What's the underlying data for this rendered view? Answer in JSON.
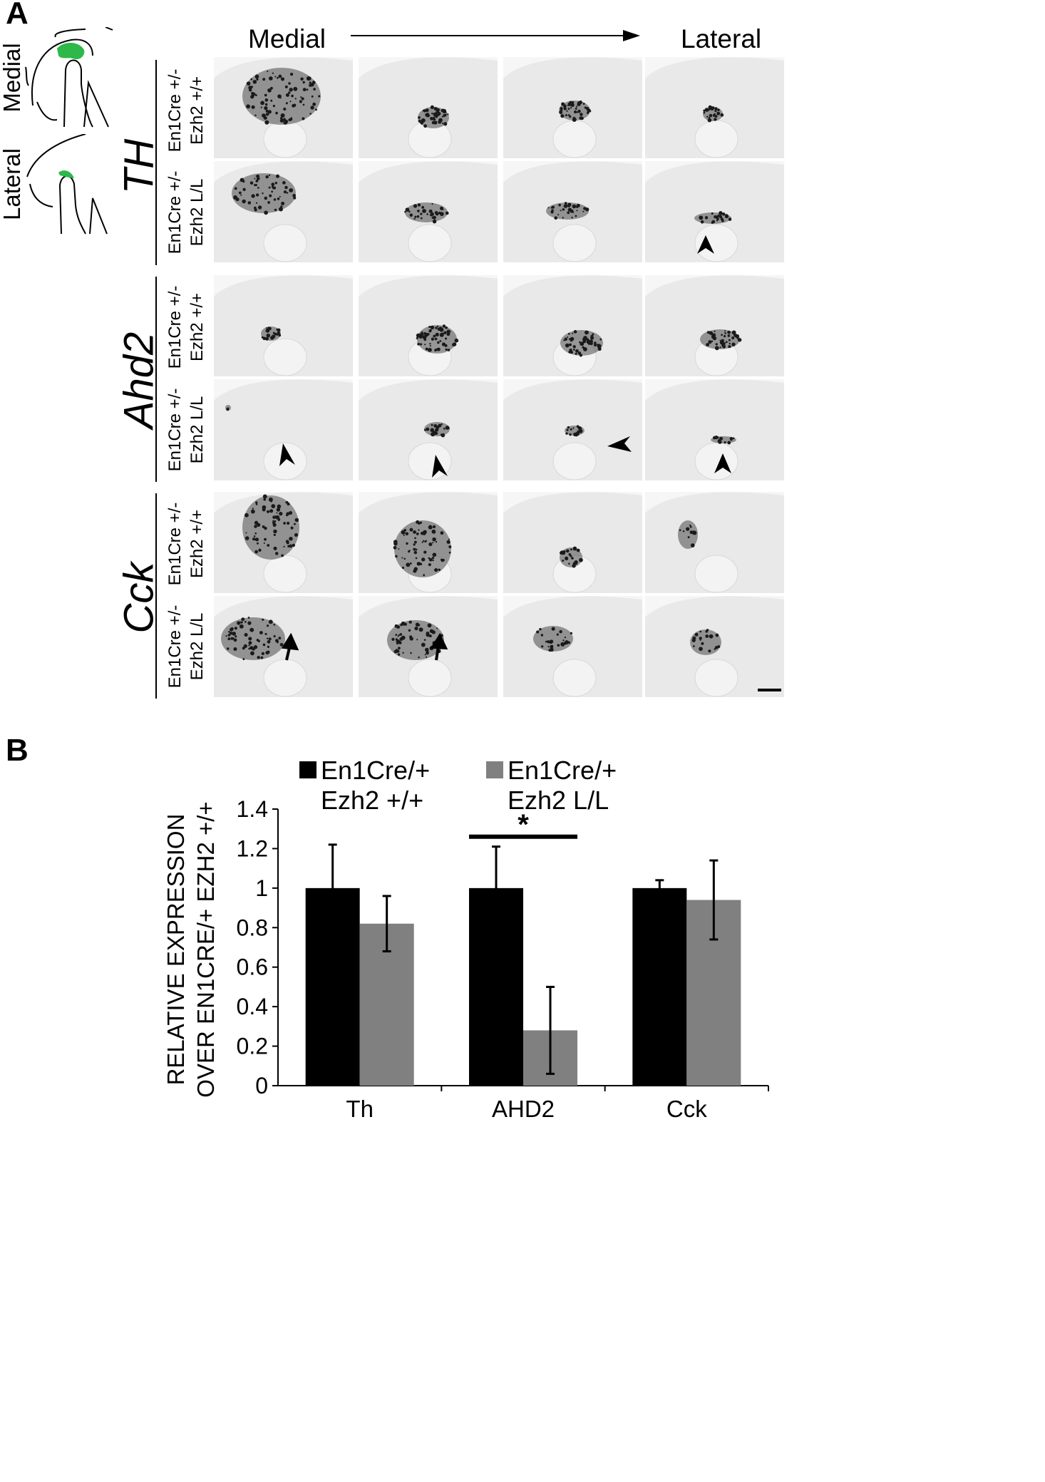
{
  "panel_a": {
    "letter": "A",
    "direction": {
      "start": "Medial",
      "end": "Lateral"
    },
    "schematics": [
      {
        "label": "Medial"
      },
      {
        "label": "Lateral"
      }
    ],
    "genotypes": {
      "control": [
        "En1Cre +/-",
        "Ezh2 +/+"
      ],
      "mutant": [
        "En1Cre +/-",
        "Ezh2 L/L"
      ]
    },
    "genes": [
      "TH",
      "Ahd2",
      "Cck"
    ],
    "colors": {
      "schematic_highlight": "#2db84a",
      "stain": "#1a1a1a",
      "tissue": "#e9e9e9"
    }
  },
  "panel_b": {
    "letter": "B",
    "legend": [
      {
        "lines": [
          "En1Cre/+",
          "Ezh2 +/+"
        ],
        "color": "#000000"
      },
      {
        "lines": [
          "En1Cre/+",
          "Ezh2 L/L"
        ],
        "color": "#808080"
      }
    ],
    "significance_marker": "*"
  },
  "chart_data": {
    "type": "bar",
    "categories": [
      "Th",
      "AHD2",
      "Cck"
    ],
    "series": [
      {
        "name": "En1Cre/+ Ezh2 +/+",
        "color": "#000000",
        "values": [
          1.0,
          1.0,
          1.0
        ],
        "errors": [
          0.22,
          0.21,
          0.04
        ]
      },
      {
        "name": "En1Cre/+ Ezh2 L/L",
        "color": "#808080",
        "values": [
          0.82,
          0.28,
          0.94
        ],
        "errors": [
          0.14,
          0.22,
          0.2
        ]
      }
    ],
    "ylabel_lines": [
      "RELATIVE EXPRESSION",
      "OVER EN1CRE/+ EZH2 +/+"
    ],
    "xlabel": "",
    "ylim": [
      0,
      1.4
    ],
    "yticks": [
      "0",
      "0.2",
      "0.4",
      "0.6",
      "0.8",
      "1",
      "1.2",
      "1.4"
    ],
    "grid": false,
    "legend_position": "top"
  }
}
